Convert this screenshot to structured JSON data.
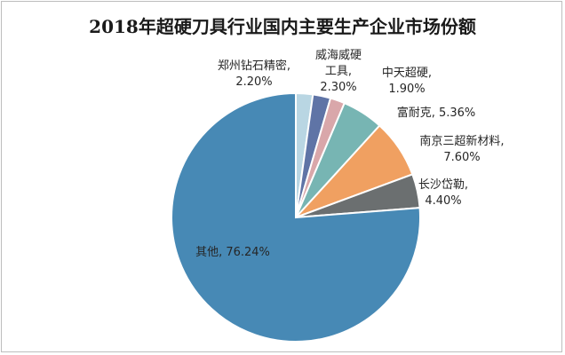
{
  "chart_data": {
    "type": "pie",
    "title": "2018年超硬刀具行业国内主要生产企业市场份额",
    "start_angle_deg": 0,
    "direction": "clockwise",
    "slices": [
      {
        "name": "郑州钻石精密",
        "value": 2.2,
        "label": "2.20%",
        "color": "#b9d6e3"
      },
      {
        "name": "威海威硬工具",
        "value": 2.3,
        "label": "2.30%",
        "color": "#5f74a6"
      },
      {
        "name": "中天超硬",
        "value": 1.9,
        "label": "1.90%",
        "color": "#d9a7aa"
      },
      {
        "name": "富耐克",
        "value": 5.36,
        "label": "5.36%",
        "color": "#77b5b3"
      },
      {
        "name": "南京三超新材料",
        "value": 7.6,
        "label": "7.60%",
        "color": "#f0a061"
      },
      {
        "name": "长沙岱勒",
        "value": 4.4,
        "label": "4.40%",
        "color": "#6b6f70"
      },
      {
        "name": "其他",
        "value": 76.24,
        "label": "76.24%",
        "color": "#4789b5"
      }
    ],
    "label_texts": [
      [
        "郑州钻石精密,",
        "2.20%"
      ],
      [
        "威海威硬",
        "工具,",
        "2.30%"
      ],
      [
        "中天超硬,",
        "1.90%"
      ],
      [
        "富耐克, 5.36%"
      ],
      [
        "南京三超新材料,",
        "7.60%"
      ],
      [
        "长沙岱勒,",
        "4.40%"
      ],
      [
        "其他, 76.24%"
      ]
    ]
  }
}
